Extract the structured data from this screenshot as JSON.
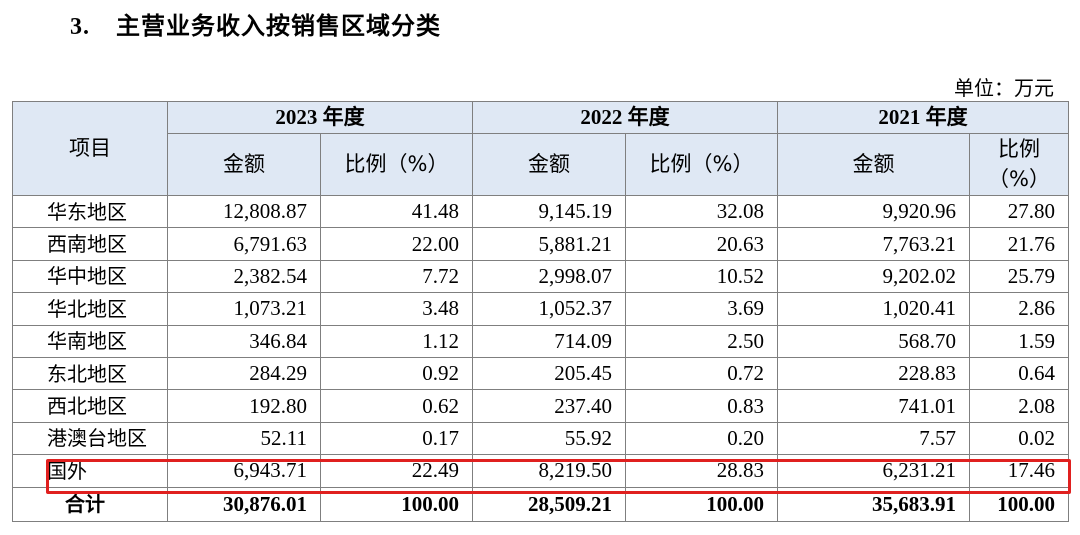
{
  "heading": {
    "number": "3.",
    "title": "主营业务收入按销售区域分类"
  },
  "unit_label": "单位：万元",
  "table": {
    "item_header": "项目",
    "years": [
      "2023 年度",
      "2022 年度",
      "2021 年度"
    ],
    "amount_header": "金额",
    "ratio_header": "比例（%）",
    "ratio_header_2021_line1": "比例",
    "ratio_header_2021_line2": "（%）",
    "rows": [
      {
        "region": "华东地区",
        "v": [
          "12,808.87",
          "41.48",
          "9,145.19",
          "32.08",
          "9,920.96",
          "27.80"
        ]
      },
      {
        "region": "西南地区",
        "v": [
          "6,791.63",
          "22.00",
          "5,881.21",
          "20.63",
          "7,763.21",
          "21.76"
        ]
      },
      {
        "region": "华中地区",
        "v": [
          "2,382.54",
          "7.72",
          "2,998.07",
          "10.52",
          "9,202.02",
          "25.79"
        ]
      },
      {
        "region": "华北地区",
        "v": [
          "1,073.21",
          "3.48",
          "1,052.37",
          "3.69",
          "1,020.41",
          "2.86"
        ]
      },
      {
        "region": "华南地区",
        "v": [
          "346.84",
          "1.12",
          "714.09",
          "2.50",
          "568.70",
          "1.59"
        ]
      },
      {
        "region": "东北地区",
        "v": [
          "284.29",
          "0.92",
          "205.45",
          "0.72",
          "228.83",
          "0.64"
        ]
      },
      {
        "region": "西北地区",
        "v": [
          "192.80",
          "0.62",
          "237.40",
          "0.83",
          "741.01",
          "2.08"
        ]
      },
      {
        "region": "港澳台地区",
        "v": [
          "52.11",
          "0.17",
          "55.92",
          "0.20",
          "7.57",
          "0.02"
        ]
      },
      {
        "region": "国外",
        "v": [
          "6,943.71",
          "22.49",
          "8,219.50",
          "28.83",
          "6,231.21",
          "17.46"
        ]
      }
    ],
    "total": {
      "region": "合计",
      "v": [
        "30,876.01",
        "100.00",
        "28,509.21",
        "100.00",
        "35,683.91",
        "100.00"
      ]
    }
  },
  "colors": {
    "header_bg": "#dfe8f4",
    "border": "#7f7f7f",
    "highlight": "#e0201f"
  }
}
